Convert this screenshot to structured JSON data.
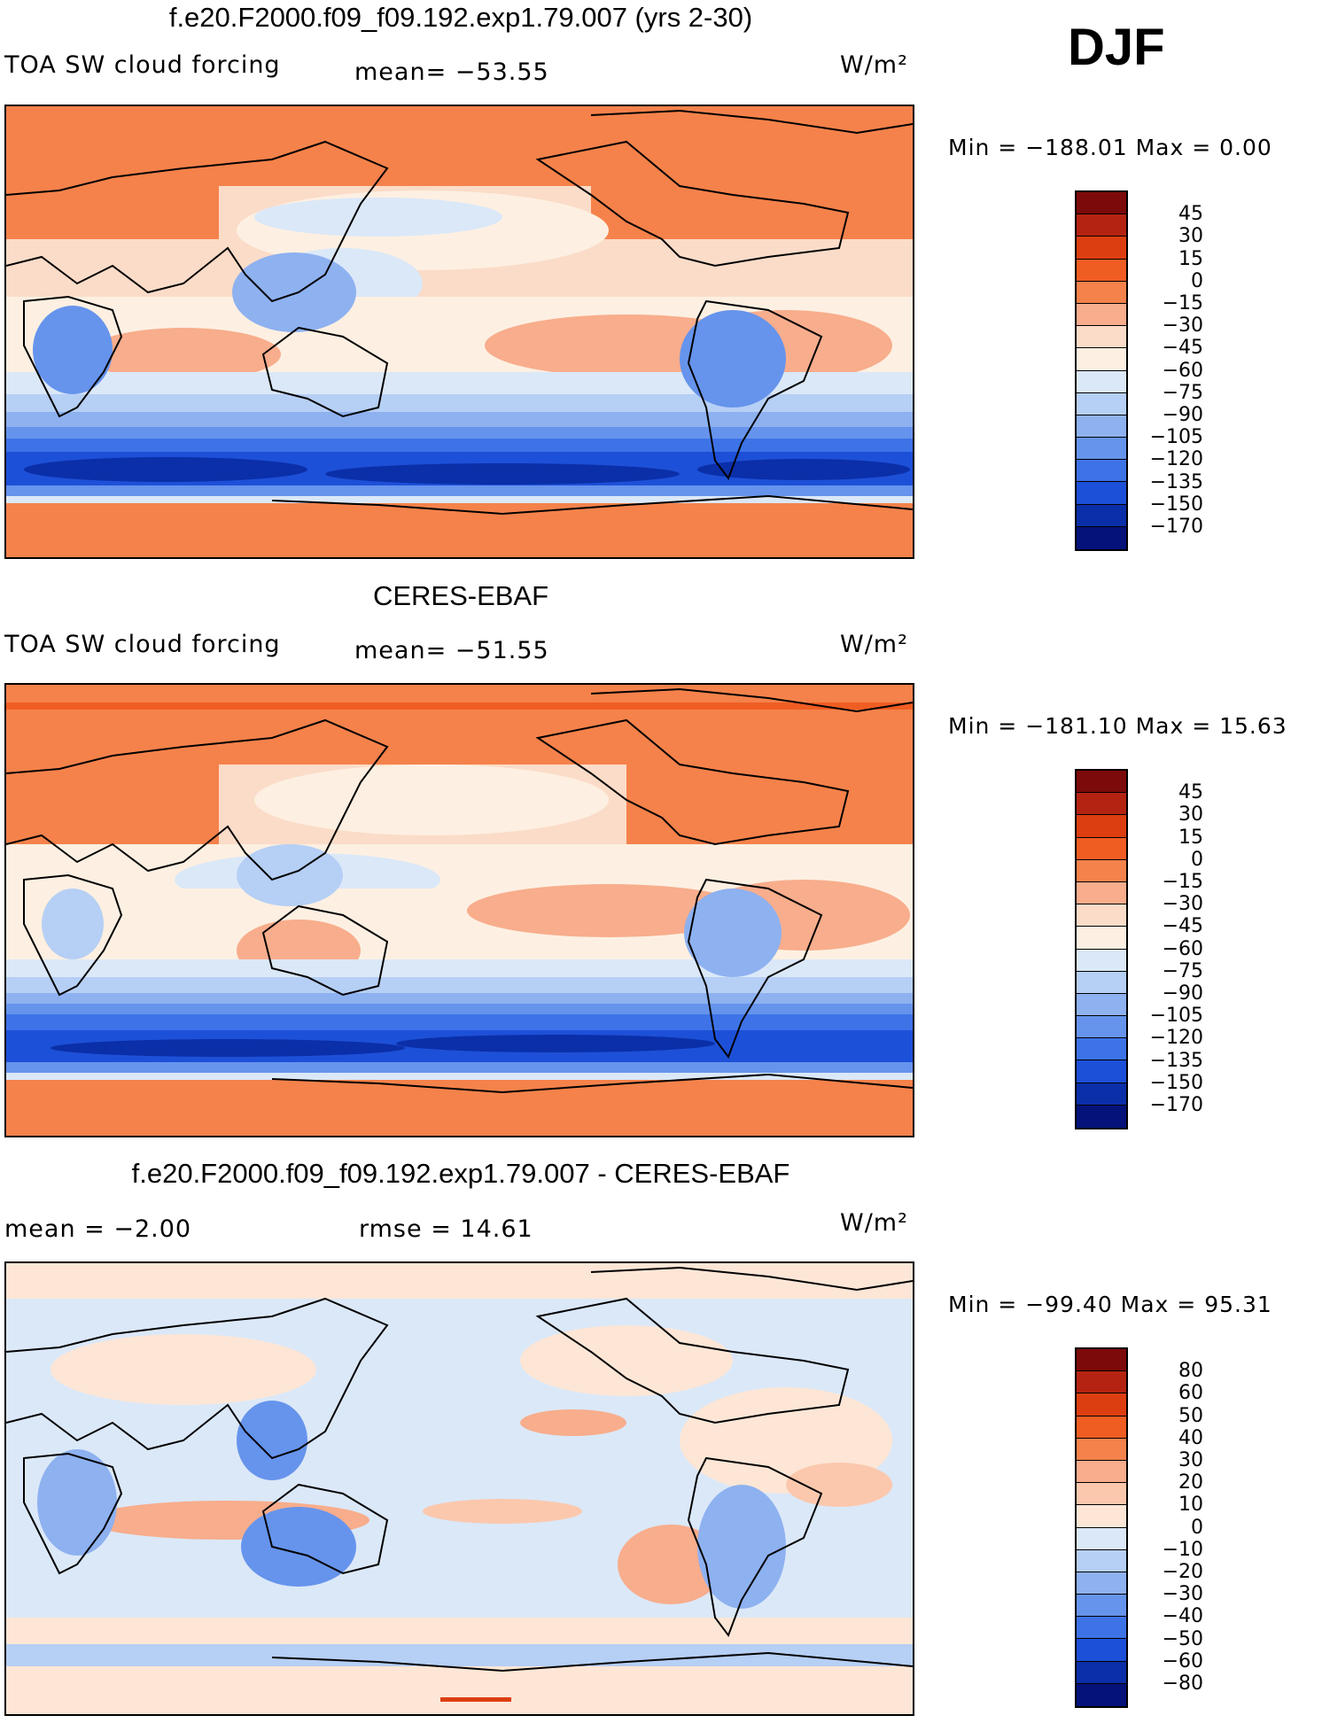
{
  "season": "DJF",
  "palette": {
    "p45": "#7d0a0a",
    "p30": "#b42311",
    "p15": "#dd3e10",
    "p0": "#f05d23",
    "m15": "#f5824b",
    "m30": "#f8ad8c",
    "m45": "#fbdcc8",
    "m60": "#fdf0e2",
    "m75": "#dbe8f8",
    "m90": "#b6cff5",
    "m105": "#8eb1f0",
    "m120": "#6694ec",
    "m135": "#3e73e8",
    "m150": "#1d50d8",
    "m170": "#0b2fa8",
    "m190": "#04127a",
    "coast": "#000000"
  },
  "panels": [
    {
      "title": "f.e20.F2000.f09_f09.192.exp1.79.007 (yrs 2-30)",
      "left_label": "TOA SW cloud forcing",
      "mean_label": "mean=  −53.55",
      "units": "W/m²",
      "minmax": "Min  =  −188.01  Max  =     0.00",
      "colorbar": [
        "45",
        "30",
        "15",
        "0",
        "−15",
        "−30",
        "−45",
        "−60",
        "−75",
        "−90",
        "−105",
        "−120",
        "−135",
        "−150",
        "−170"
      ],
      "colorbar_colors": [
        "#7d0a0a",
        "#b42311",
        "#dd3e10",
        "#f05d23",
        "#f5824b",
        "#f8ad8c",
        "#fbdcc8",
        "#fdf0e2",
        "#dbe8f8",
        "#b6cff5",
        "#8eb1f0",
        "#6694ec",
        "#3e73e8",
        "#1d50d8",
        "#0b2fa8",
        "#04127a"
      ]
    },
    {
      "title": "CERES-EBAF",
      "left_label": "TOA SW cloud forcing",
      "mean_label": "mean=  −51.55",
      "units": "W/m²",
      "minmax": "Min  =  −181.10  Max  =   15.63",
      "colorbar": [
        "45",
        "30",
        "15",
        "0",
        "−15",
        "−30",
        "−45",
        "−60",
        "−75",
        "−90",
        "−105",
        "−120",
        "−135",
        "−150",
        "−170"
      ],
      "colorbar_colors": [
        "#7d0a0a",
        "#b42311",
        "#dd3e10",
        "#f05d23",
        "#f5824b",
        "#f8ad8c",
        "#fbdcc8",
        "#fdf0e2",
        "#dbe8f8",
        "#b6cff5",
        "#8eb1f0",
        "#6694ec",
        "#3e73e8",
        "#1d50d8",
        "#0b2fa8",
        "#04127a"
      ]
    },
    {
      "title": "f.e20.F2000.f09_f09.192.exp1.79.007 - CERES-EBAF",
      "left_label": "mean  =    −2.00",
      "mean_label": "rmse  =    14.61",
      "units": "W/m²",
      "minmax": "Min  =  −99.40  Max  =   95.31",
      "colorbar": [
        "80",
        "60",
        "50",
        "40",
        "30",
        "20",
        "10",
        "0",
        "−10",
        "−20",
        "−30",
        "−40",
        "−50",
        "−60",
        "−80"
      ],
      "colorbar_colors": [
        "#7d0a0a",
        "#b42311",
        "#dd3e10",
        "#f05d23",
        "#f5824b",
        "#f8ad8c",
        "#fbc8ad",
        "#fde6d6",
        "#dbe8f8",
        "#b6cff5",
        "#8eb1f0",
        "#6694ec",
        "#3e73e8",
        "#1d50d8",
        "#0b2fa8",
        "#04127a"
      ]
    }
  ]
}
